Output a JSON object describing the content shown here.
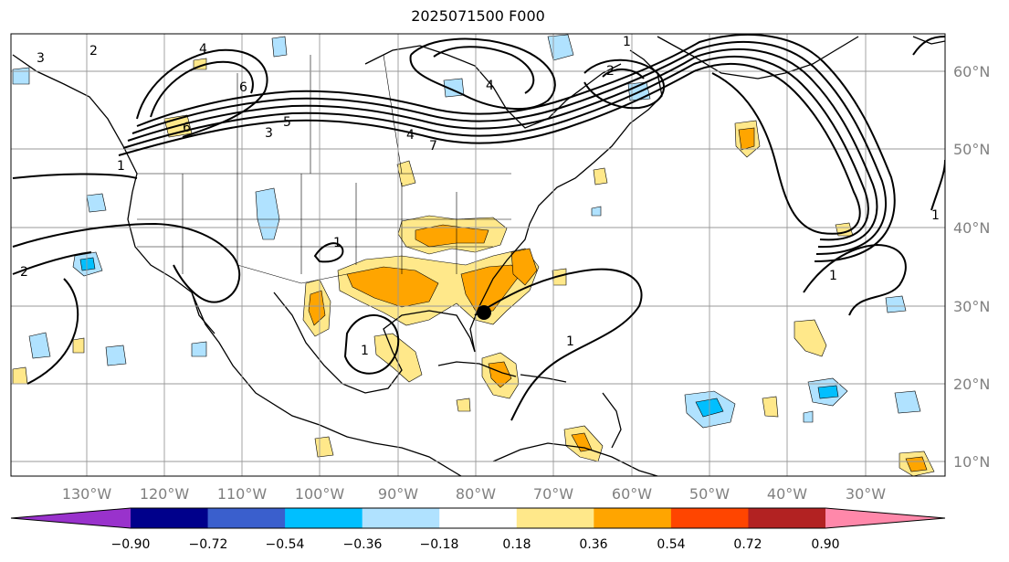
{
  "title": "2025071500 F000",
  "lon_labels": [
    "130°W",
    "120°W",
    "110°W",
    "100°W",
    "90°W",
    "80°W",
    "70°W",
    "60°W",
    "50°W",
    "40°W",
    "30°W"
  ],
  "lat_labels": [
    "10°N",
    "20°N",
    "30°N",
    "40°N",
    "50°N",
    "60°N"
  ],
  "colorbar": {
    "ticks": [
      "−0.90",
      "−0.72",
      "−0.54",
      "−0.36",
      "−0.18",
      "0.18",
      "0.36",
      "0.54",
      "0.72",
      "0.90"
    ],
    "colors": [
      "#9932cc",
      "#00008b",
      "#3a5fcd",
      "#00bfff",
      "#b0e2ff",
      "#ffffff",
      "#ffe88a",
      "#ffa500",
      "#ff4500",
      "#b22222",
      "#ff88aa"
    ]
  },
  "contour_labels": [
    "1",
    "1",
    "1",
    "1",
    "1",
    "1",
    "1",
    "2",
    "2",
    "3",
    "3",
    "4",
    "4",
    "5",
    "6",
    "6",
    "7",
    "4",
    "2"
  ],
  "marker": "storm-center-dot"
}
